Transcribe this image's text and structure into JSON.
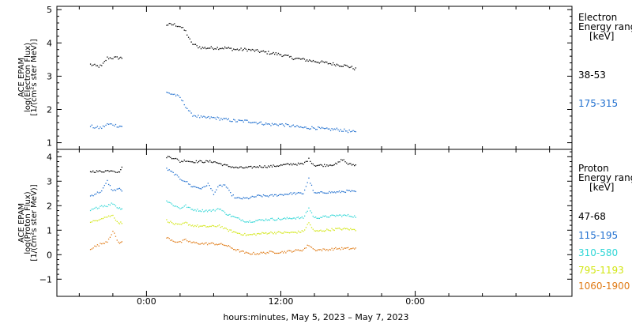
{
  "chart_data": [
    {
      "type": "scatter",
      "ylabel": [
        "ACE EPAM",
        "log(Electron Flux)",
        "[1/(cm²s ster MeV)]"
      ],
      "ylim": [
        0.8,
        5.1
      ],
      "yticks": [
        1,
        2,
        3,
        4,
        5
      ],
      "legend_title": [
        "Electron",
        "Energy range",
        "[keV]"
      ],
      "series": [
        {
          "name": "38-53",
          "color": "#000000",
          "points": [
            [
              -5,
              3.35
            ],
            [
              -4.5,
              3.3
            ],
            [
              -4,
              3.3
            ],
            [
              -3.5,
              3.55
            ],
            [
              -3,
              3.55
            ],
            [
              -2.5,
              3.55
            ],
            [
              -2.1,
              3.55
            ],
            [
              1.8,
              4.55
            ],
            [
              2.5,
              4.55
            ],
            [
              3,
              4.5
            ],
            [
              3.5,
              4.35
            ],
            [
              4,
              4.0
            ],
            [
              4.5,
              3.9
            ],
            [
              5,
              3.85
            ],
            [
              6,
              3.85
            ],
            [
              7,
              3.85
            ],
            [
              8,
              3.8
            ],
            [
              9,
              3.8
            ],
            [
              10,
              3.75
            ],
            [
              11,
              3.7
            ],
            [
              12,
              3.65
            ],
            [
              13,
              3.55
            ],
            [
              14,
              3.5
            ],
            [
              15,
              3.45
            ],
            [
              16,
              3.4
            ],
            [
              17,
              3.35
            ],
            [
              18,
              3.3
            ],
            [
              18.8,
              3.2
            ]
          ]
        },
        {
          "name": "175-315",
          "color": "#1f6fcf",
          "points": [
            [
              -5,
              1.5
            ],
            [
              -4.5,
              1.45
            ],
            [
              -4,
              1.45
            ],
            [
              -3.5,
              1.55
            ],
            [
              -3,
              1.55
            ],
            [
              -2.5,
              1.5
            ],
            [
              -2.1,
              1.5
            ],
            [
              1.8,
              2.5
            ],
            [
              2.5,
              2.45
            ],
            [
              3,
              2.35
            ],
            [
              3.5,
              2.1
            ],
            [
              4,
              1.85
            ],
            [
              4.5,
              1.8
            ],
            [
              5,
              1.75
            ],
            [
              6,
              1.75
            ],
            [
              7,
              1.7
            ],
            [
              8,
              1.65
            ],
            [
              9,
              1.65
            ],
            [
              10,
              1.6
            ],
            [
              11,
              1.55
            ],
            [
              12,
              1.55
            ],
            [
              13,
              1.5
            ],
            [
              14,
              1.45
            ],
            [
              15,
              1.45
            ],
            [
              16,
              1.4
            ],
            [
              17,
              1.4
            ],
            [
              18,
              1.35
            ],
            [
              18.8,
              1.3
            ]
          ]
        }
      ]
    },
    {
      "type": "scatter",
      "ylabel": [
        "ACE EPAM",
        "log(Proton Flux)",
        "[1/(cm²s ster MeV)]"
      ],
      "ylim": [
        -1.7,
        4.3
      ],
      "yticks": [
        -1,
        0,
        1,
        2,
        3,
        4
      ],
      "legend_title": [
        "Proton",
        "Energy range",
        "[keV]"
      ],
      "series": [
        {
          "name": "47-68",
          "color": "#000000",
          "points": [
            [
              -5,
              3.4
            ],
            [
              -4,
              3.4
            ],
            [
              -3,
              3.45
            ],
            [
              -2.5,
              3.35
            ],
            [
              -2.1,
              3.6
            ],
            [
              1.8,
              4.0
            ],
            [
              2.5,
              3.95
            ],
            [
              3,
              3.8
            ],
            [
              3.5,
              3.85
            ],
            [
              4,
              3.8
            ],
            [
              5,
              3.8
            ],
            [
              6,
              3.8
            ],
            [
              7,
              3.65
            ],
            [
              8,
              3.55
            ],
            [
              9,
              3.55
            ],
            [
              10,
              3.6
            ],
            [
              11,
              3.6
            ],
            [
              12,
              3.65
            ],
            [
              13,
              3.7
            ],
            [
              14,
              3.7
            ],
            [
              14.5,
              3.9
            ],
            [
              15,
              3.65
            ],
            [
              16,
              3.65
            ],
            [
              17,
              3.7
            ],
            [
              17.5,
              3.9
            ],
            [
              18,
              3.7
            ],
            [
              18.8,
              3.65
            ]
          ]
        },
        {
          "name": "115-195",
          "color": "#1f6fcf",
          "points": [
            [
              -5,
              2.4
            ],
            [
              -4.5,
              2.5
            ],
            [
              -4,
              2.6
            ],
            [
              -3.5,
              3.0
            ],
            [
              -3,
              2.6
            ],
            [
              -2.5,
              2.7
            ],
            [
              -2.1,
              2.6
            ],
            [
              1.8,
              3.5
            ],
            [
              2.5,
              3.3
            ],
            [
              3,
              3.1
            ],
            [
              3.5,
              3.0
            ],
            [
              4,
              2.8
            ],
            [
              5,
              2.7
            ],
            [
              5.5,
              2.9
            ],
            [
              6,
              2.5
            ],
            [
              6.5,
              2.8
            ],
            [
              7,
              2.85
            ],
            [
              7.5,
              2.5
            ],
            [
              8,
              2.3
            ],
            [
              9,
              2.3
            ],
            [
              10,
              2.4
            ],
            [
              11,
              2.4
            ],
            [
              12,
              2.45
            ],
            [
              13,
              2.5
            ],
            [
              14,
              2.5
            ],
            [
              14.5,
              3.1
            ],
            [
              15,
              2.5
            ],
            [
              16,
              2.55
            ],
            [
              17,
              2.55
            ],
            [
              18,
              2.6
            ],
            [
              18.8,
              2.55
            ]
          ]
        },
        {
          "name": "310-580",
          "color": "#2fd6d6",
          "points": [
            [
              -5,
              1.8
            ],
            [
              -4.5,
              1.9
            ],
            [
              -4,
              2.0
            ],
            [
              -3.5,
              2.0
            ],
            [
              -3,
              2.1
            ],
            [
              -2.5,
              1.9
            ],
            [
              -2.1,
              1.9
            ],
            [
              1.8,
              2.2
            ],
            [
              2.5,
              2.0
            ],
            [
              3,
              1.9
            ],
            [
              3.5,
              2.0
            ],
            [
              4,
              1.85
            ],
            [
              5,
              1.8
            ],
            [
              6,
              1.8
            ],
            [
              6.5,
              1.9
            ],
            [
              7,
              1.7
            ],
            [
              8,
              1.5
            ],
            [
              9,
              1.35
            ],
            [
              10,
              1.4
            ],
            [
              11,
              1.45
            ],
            [
              12,
              1.45
            ],
            [
              13,
              1.5
            ],
            [
              14,
              1.5
            ],
            [
              14.5,
              1.9
            ],
            [
              15,
              1.5
            ],
            [
              16,
              1.55
            ],
            [
              17,
              1.6
            ],
            [
              18,
              1.6
            ],
            [
              18.8,
              1.55
            ]
          ]
        },
        {
          "name": "795-1193",
          "color": "#d2e612",
          "points": [
            [
              -5,
              1.3
            ],
            [
              -4.5,
              1.4
            ],
            [
              -4,
              1.5
            ],
            [
              -3.5,
              1.55
            ],
            [
              -3,
              1.6
            ],
            [
              -2.5,
              1.3
            ],
            [
              -2.1,
              1.3
            ],
            [
              1.8,
              1.4
            ],
            [
              2.5,
              1.25
            ],
            [
              3,
              1.2
            ],
            [
              3.5,
              1.3
            ],
            [
              4,
              1.2
            ],
            [
              5,
              1.15
            ],
            [
              6,
              1.15
            ],
            [
              6.5,
              1.2
            ],
            [
              7,
              1.05
            ],
            [
              8,
              0.9
            ],
            [
              9,
              0.8
            ],
            [
              10,
              0.85
            ],
            [
              11,
              0.9
            ],
            [
              12,
              0.9
            ],
            [
              13,
              0.9
            ],
            [
              14,
              0.95
            ],
            [
              14.5,
              1.3
            ],
            [
              15,
              0.95
            ],
            [
              16,
              1.0
            ],
            [
              17,
              1.05
            ],
            [
              18,
              1.05
            ],
            [
              18.8,
              1.0
            ]
          ]
        },
        {
          "name": "1060-1900",
          "color": "#e07b16",
          "points": [
            [
              -5,
              0.25
            ],
            [
              -4.5,
              0.35
            ],
            [
              -4,
              0.45
            ],
            [
              -3.5,
              0.55
            ],
            [
              -3,
              0.95
            ],
            [
              -2.5,
              0.5
            ],
            [
              -2.1,
              0.5
            ],
            [
              1.8,
              0.7
            ],
            [
              2.5,
              0.55
            ],
            [
              3,
              0.5
            ],
            [
              3.5,
              0.6
            ],
            [
              4,
              0.5
            ],
            [
              5,
              0.45
            ],
            [
              6,
              0.45
            ],
            [
              7,
              0.4
            ],
            [
              8,
              0.2
            ],
            [
              9,
              0.05
            ],
            [
              10,
              0.05
            ],
            [
              11,
              0.1
            ],
            [
              12,
              0.1
            ],
            [
              13,
              0.15
            ],
            [
              14,
              0.2
            ],
            [
              14.5,
              0.4
            ],
            [
              15,
              0.2
            ],
            [
              16,
              0.2
            ],
            [
              17,
              0.25
            ],
            [
              18,
              0.25
            ],
            [
              18.8,
              0.25
            ]
          ]
        }
      ]
    }
  ],
  "x_axis": {
    "xlim": [
      -8,
      38
    ],
    "ticks": [
      {
        "h": 0,
        "label": "0:00"
      },
      {
        "h": 12,
        "label": "12:00"
      },
      {
        "h": 24,
        "label": "0:00"
      }
    ],
    "minor_step": 3
  },
  "xlabel": "hours:minutes, May  5, 2023 – May  7, 2023"
}
